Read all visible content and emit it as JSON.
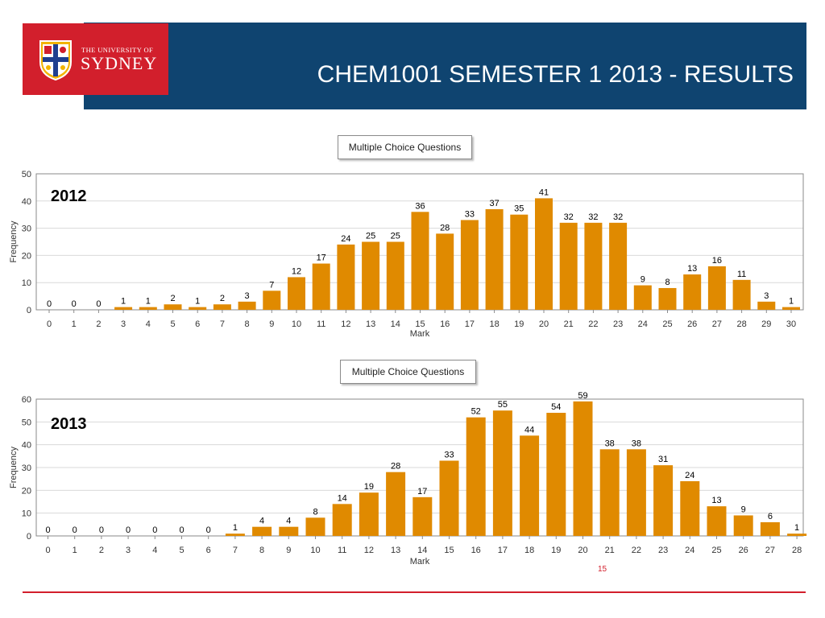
{
  "header": {
    "title": "CHEM1001 SEMESTER 1 2013 - RESULTS",
    "logo_line1": "THE UNIVERSITY OF",
    "logo_line2": "SYDNEY"
  },
  "footer": {
    "slide_number": "15"
  },
  "colors": {
    "header_bg": "#0f4470",
    "logo_bg": "#d21f2c",
    "bar": "#e08a00",
    "footer_line": "#d21f2c"
  },
  "chart_data": [
    {
      "type": "bar",
      "title": "Multiple Choice Questions",
      "annotation": "2012",
      "xlabel": "Mark",
      "ylabel": "Frequency",
      "ylim": [
        0,
        50
      ],
      "yticks": [
        0,
        10,
        20,
        30,
        40,
        50
      ],
      "grid": true,
      "categories": [
        "0",
        "1",
        "2",
        "3",
        "4",
        "5",
        "6",
        "7",
        "8",
        "9",
        "10",
        "11",
        "12",
        "13",
        "14",
        "15",
        "16",
        "17",
        "18",
        "19",
        "20",
        "21",
        "22",
        "23",
        "24",
        "25",
        "26",
        "27",
        "28",
        "29",
        "30"
      ],
      "values": [
        0,
        0,
        0,
        1,
        1,
        2,
        1,
        2,
        3,
        7,
        12,
        17,
        24,
        25,
        25,
        36,
        28,
        33,
        37,
        35,
        41,
        32,
        32,
        32,
        9,
        8,
        13,
        16,
        11,
        3,
        1
      ]
    },
    {
      "type": "bar",
      "title": "Multiple Choice Questions",
      "annotation": "2013",
      "xlabel": "Mark",
      "ylabel": "Frequency",
      "ylim": [
        0,
        60
      ],
      "yticks": [
        0,
        10,
        20,
        30,
        40,
        50,
        60
      ],
      "grid": true,
      "categories": [
        "0",
        "1",
        "2",
        "3",
        "4",
        "5",
        "6",
        "7",
        "8",
        "9",
        "10",
        "11",
        "12",
        "13",
        "14",
        "15",
        "16",
        "17",
        "18",
        "19",
        "20",
        "21",
        "22",
        "23",
        "24",
        "25",
        "26",
        "27",
        "28"
      ],
      "values": [
        0,
        0,
        0,
        0,
        0,
        0,
        0,
        1,
        4,
        4,
        8,
        14,
        19,
        28,
        17,
        33,
        52,
        55,
        44,
        54,
        59,
        38,
        38,
        31,
        24,
        13,
        9,
        6,
        1
      ]
    }
  ]
}
